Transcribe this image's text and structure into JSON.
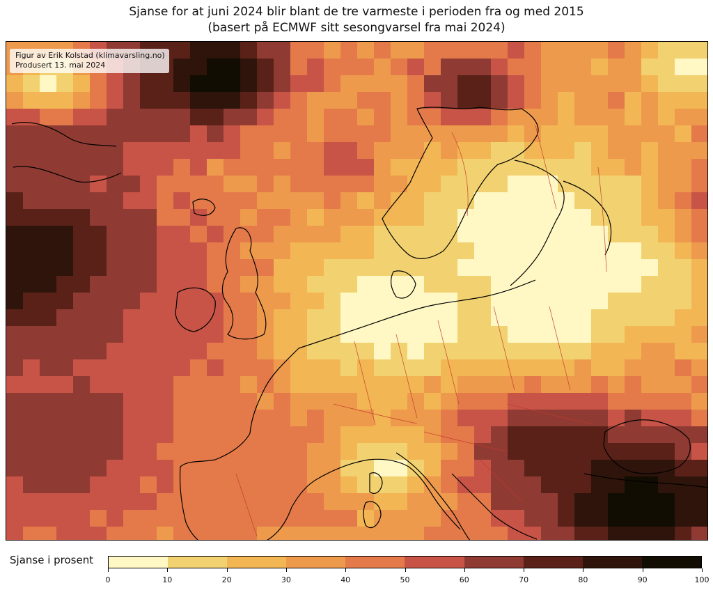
{
  "figure": {
    "title_line1": "Sjanse for at juni 2024 blir blant de tre varmeste i perioden fra og med 2015",
    "title_line2": "(basert på ECMWF sitt sesongvarsel fra mai 2024)",
    "credit_line1": "Figur av Erik Kolstad (klimavarsling.no)",
    "credit_line2": "Produsert 13. mai 2024"
  },
  "colorbar": {
    "label": "Sjanse i prosent",
    "ticks": [
      "0",
      "10",
      "20",
      "30",
      "40",
      "50",
      "60",
      "70",
      "80",
      "90",
      "100"
    ],
    "colors": [
      "#fff8c4",
      "#f2d270",
      "#f3b654",
      "#ee9a4d",
      "#e47a4a",
      "#c85447",
      "#8f3b33",
      "#5a2119",
      "#2e140a",
      "#120d02"
    ]
  },
  "map": {
    "region": "Europe",
    "land_color": "none",
    "coastline_color": "#000000",
    "border_color": "#c0392b"
  }
}
